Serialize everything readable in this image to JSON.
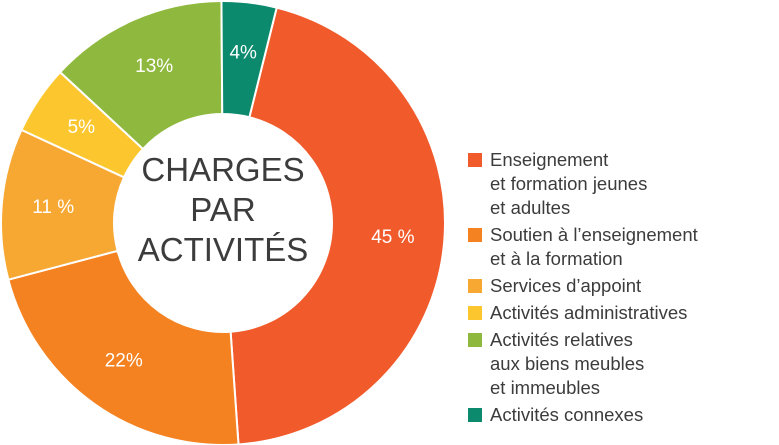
{
  "chart_data": {
    "type": "donut",
    "title": "CHARGES\nPAR\nACTIVITÉS",
    "categories": [
      "Enseignement\net formation jeunes\net adultes",
      "Soutien à l’enseignement\net à la formation",
      "Services d’appoint",
      "Activités administratives",
      "Activités relatives\naux biens meubles\net immeubles",
      "Activités connexes"
    ],
    "values": [
      45,
      22,
      11,
      5,
      13,
      4
    ],
    "value_labels": [
      "45 %",
      "22%",
      "11 %",
      "5%",
      "13%",
      "4%"
    ],
    "colors": [
      "#f15a2b",
      "#f58220",
      "#f7a833",
      "#fcc72e",
      "#8fb83e",
      "#0b8a6e"
    ]
  }
}
